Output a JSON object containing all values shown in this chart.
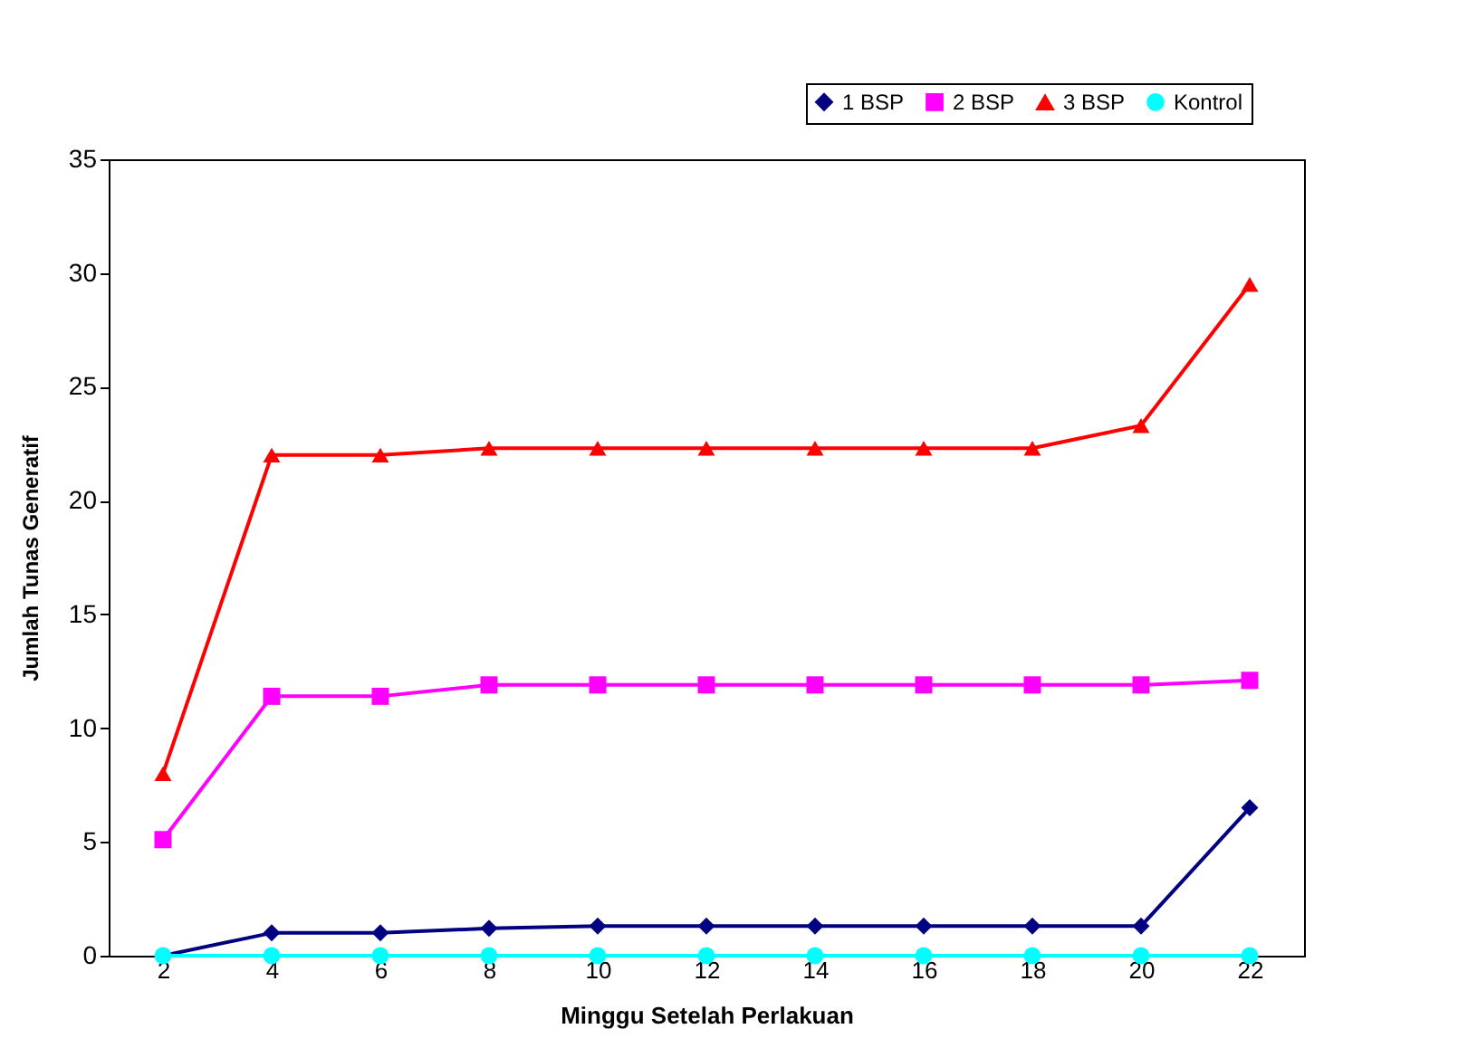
{
  "chart_data": {
    "type": "line",
    "xlabel": "Minggu Setelah Perlakuan",
    "ylabel": "Jumlah Tunas Generatif",
    "categories": [
      "2",
      "4",
      "6",
      "8",
      "10",
      "12",
      "14",
      "16",
      "18",
      "20",
      "22"
    ],
    "series": [
      {
        "name": "1 BSP",
        "color": "#000080",
        "marker": "diamond",
        "values": [
          0,
          1.0,
          1.0,
          1.2,
          1.3,
          1.3,
          1.3,
          1.3,
          1.3,
          1.3,
          6.5
        ]
      },
      {
        "name": "2 BSP",
        "color": "#ff00ff",
        "marker": "square",
        "values": [
          5.1,
          11.4,
          11.4,
          11.9,
          11.9,
          11.9,
          11.9,
          11.9,
          11.9,
          11.9,
          12.1
        ]
      },
      {
        "name": "3 BSP",
        "color": "#ff0000",
        "marker": "triangle",
        "values": [
          8.0,
          22.0,
          22.0,
          22.3,
          22.3,
          22.3,
          22.3,
          22.3,
          22.3,
          23.3,
          29.5
        ]
      },
      {
        "name": "Kontrol",
        "color": "#00ffff",
        "marker": "circle",
        "values": [
          0,
          0,
          0,
          0,
          0,
          0,
          0,
          0,
          0,
          0,
          0
        ]
      }
    ],
    "ylim": [
      0,
      35
    ],
    "yticks": [
      0,
      5,
      10,
      15,
      20,
      25,
      30,
      35
    ],
    "grid": false,
    "legend": "top right"
  }
}
